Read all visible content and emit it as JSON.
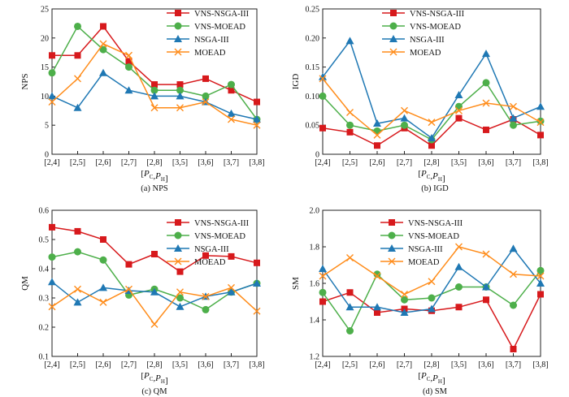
{
  "series_names": [
    "VNS-NSGA-III",
    "VNS-MOEAD",
    "NSGA-III",
    "MOEAD"
  ],
  "series_colors": [
    "#d7191c",
    "#4daf4a",
    "#1f78b4",
    "#ff8c1a"
  ],
  "series_markers": [
    "square",
    "circle",
    "triangle",
    "x"
  ],
  "chart_data": [
    {
      "type": "line",
      "title": "NPS",
      "caption": "(a)   NPS",
      "ylabel": "NPS",
      "xlabel": "[P_C,P_H]",
      "categories": [
        "[2,4]",
        "[2,5]",
        "[2,6]",
        "[2,7]",
        "[2,8]",
        "[3,5]",
        "[3,6]",
        "[3,7]",
        "[3,8]"
      ],
      "ylim": [
        0,
        25
      ],
      "yticks": [
        "0",
        "5",
        "10",
        "15",
        "20",
        "25"
      ],
      "series": [
        {
          "name": "VNS-NSGA-III",
          "values": [
            17,
            17,
            22,
            16,
            12,
            12,
            13,
            11,
            9
          ]
        },
        {
          "name": "VNS-MOEAD",
          "values": [
            14,
            22,
            18,
            15,
            11,
            11,
            10,
            12,
            6
          ]
        },
        {
          "name": "NSGA-III",
          "values": [
            10,
            8,
            14,
            11,
            10,
            10,
            9,
            7,
            6
          ]
        },
        {
          "name": "MOEAD",
          "values": [
            9,
            13,
            19,
            17,
            8,
            8,
            9,
            6,
            5
          ]
        }
      ]
    },
    {
      "type": "line",
      "title": "IGD",
      "caption": "(b)   IGD",
      "ylabel": "IGD",
      "xlabel": "[P_C,P_H]",
      "categories": [
        "[2,4]",
        "[2,5]",
        "[2,6]",
        "[2,7]",
        "[2,8]",
        "[3,5]",
        "[3,6]",
        "[3,7]",
        "[3,8]"
      ],
      "ylim": [
        0,
        0.25
      ],
      "yticks": [
        "0",
        "0.05",
        "0.10",
        "0.15",
        "0.20",
        "0.25"
      ],
      "series": [
        {
          "name": "VNS-NSGA-III",
          "values": [
            0.045,
            0.038,
            0.015,
            0.045,
            0.015,
            0.062,
            0.042,
            0.06,
            0.033
          ]
        },
        {
          "name": "VNS-MOEAD",
          "values": [
            0.1,
            0.05,
            0.04,
            0.05,
            0.025,
            0.082,
            0.123,
            0.05,
            0.057
          ]
        },
        {
          "name": "NSGA-III",
          "values": [
            0.133,
            0.195,
            0.053,
            0.062,
            0.028,
            0.102,
            0.173,
            0.062,
            0.082
          ]
        },
        {
          "name": "MOEAD",
          "values": [
            0.13,
            0.072,
            0.033,
            0.075,
            0.055,
            0.075,
            0.088,
            0.082,
            0.055
          ]
        }
      ]
    },
    {
      "type": "line",
      "title": "QM",
      "caption": "(c)   QM",
      "ylabel": "QM",
      "xlabel": "[P_C,P_H]",
      "categories": [
        "[2,4]",
        "[2,5]",
        "[2,6]",
        "[2,7]",
        "[2,8]",
        "[3,5]",
        "[3,6]",
        "[3,7]",
        "[3,8]"
      ],
      "ylim": [
        0.1,
        0.6
      ],
      "yticks": [
        "0.1",
        "0.2",
        "0.3",
        "0.4",
        "0.5",
        "0.6"
      ],
      "series": [
        {
          "name": "VNS-NSGA-III",
          "values": [
            0.542,
            0.528,
            0.5,
            0.415,
            0.45,
            0.39,
            0.445,
            0.442,
            0.42
          ]
        },
        {
          "name": "VNS-MOEAD",
          "values": [
            0.44,
            0.458,
            0.43,
            0.31,
            0.33,
            0.3,
            0.26,
            0.32,
            0.35
          ]
        },
        {
          "name": "NSGA-III",
          "values": [
            0.355,
            0.285,
            0.335,
            0.325,
            0.32,
            0.27,
            0.305,
            0.32,
            0.35
          ]
        },
        {
          "name": "MOEAD",
          "values": [
            0.27,
            0.33,
            0.285,
            0.33,
            0.21,
            0.32,
            0.305,
            0.335,
            0.255
          ]
        }
      ]
    },
    {
      "type": "line",
      "title": "SM",
      "caption": "(d)   SM",
      "ylabel": "SM",
      "xlabel": "[P_C,P_H]",
      "categories": [
        "[2,4]",
        "[2,5]",
        "[2,6]",
        "[2,7]",
        "[2,8]",
        "[3,5]",
        "[3,6]",
        "[3,7]",
        "[3,8]"
      ],
      "ylim": [
        1.2,
        2.0
      ],
      "yticks": [
        "1.2",
        "1.4",
        "1.6",
        "1.8",
        "2.0"
      ],
      "series": [
        {
          "name": "VNS-NSGA-III",
          "values": [
            1.5,
            1.55,
            1.44,
            1.46,
            1.45,
            1.47,
            1.51,
            1.24,
            1.54
          ]
        },
        {
          "name": "VNS-MOEAD",
          "values": [
            1.55,
            1.34,
            1.65,
            1.51,
            1.52,
            1.58,
            1.58,
            1.48,
            1.67
          ]
        },
        {
          "name": "NSGA-III",
          "values": [
            1.68,
            1.47,
            1.47,
            1.44,
            1.46,
            1.69,
            1.58,
            1.79,
            1.6
          ]
        },
        {
          "name": "MOEAD",
          "values": [
            1.64,
            1.74,
            1.64,
            1.54,
            1.61,
            1.8,
            1.76,
            1.65,
            1.64
          ]
        }
      ]
    }
  ]
}
